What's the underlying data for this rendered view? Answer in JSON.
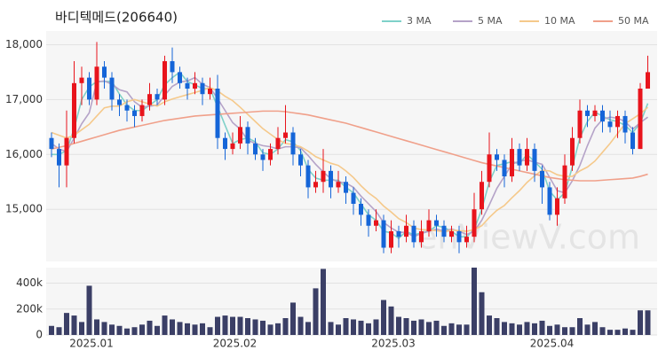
{
  "chart_data": [
    {
      "type": "candlestick",
      "title": "바디텍메드(206640)",
      "watermark": "enViewV.com",
      "categories": [
        null,
        null,
        "2025.01",
        null,
        null,
        null,
        null,
        null,
        null,
        null,
        null,
        null,
        null,
        null,
        null,
        null,
        null,
        null,
        null,
        null,
        null,
        "2025.02",
        null,
        null,
        null,
        null,
        null,
        null,
        null,
        null,
        null,
        null,
        null,
        null,
        null,
        null,
        null,
        null,
        null,
        null,
        null,
        null,
        "2025.03",
        null,
        null,
        null,
        null,
        null,
        null,
        null,
        null,
        null,
        null,
        null,
        null,
        null,
        null,
        null,
        null,
        null,
        null,
        null,
        null,
        "2025.04",
        null,
        null,
        null,
        null,
        null,
        null,
        null,
        null,
        null,
        null,
        null,
        null,
        null,
        null,
        null,
        null
      ],
      "open": [
        16300,
        16100,
        15800,
        16300,
        17300,
        17400,
        17000,
        17600,
        17400,
        17000,
        16900,
        16800,
        16700,
        16900,
        17100,
        17000,
        17700,
        17500,
        17300,
        17200,
        17300,
        17100,
        17200,
        16300,
        16100,
        16200,
        16500,
        16200,
        16000,
        15900,
        16100,
        16300,
        16400,
        16000,
        15800,
        15400,
        15500,
        15700,
        15400,
        15500,
        15300,
        15100,
        14900,
        14700,
        14800,
        14300,
        14600,
        14500,
        14700,
        14400,
        14600,
        14800,
        14700,
        14500,
        14600,
        14400,
        14500,
        15000,
        15500,
        16000,
        15900,
        15600,
        16100,
        15800,
        16100,
        15700,
        15400,
        14900,
        15200,
        15800,
        16300,
        16800,
        16700,
        16800,
        16600,
        16500,
        16700,
        16400,
        16100,
        17200
      ],
      "high": [
        16400,
        16200,
        16800,
        17700,
        17600,
        17500,
        18050,
        17700,
        17500,
        17100,
        17000,
        16900,
        17000,
        17300,
        17200,
        17800,
        17950,
        17600,
        17400,
        17500,
        17400,
        17400,
        17450,
        16400,
        16400,
        16700,
        16600,
        16300,
        16100,
        16200,
        16500,
        16900,
        16500,
        16100,
        15900,
        15700,
        16100,
        15800,
        15700,
        15600,
        15400,
        15200,
        15000,
        15000,
        14900,
        14800,
        14700,
        14900,
        14800,
        14800,
        15000,
        14900,
        14800,
        14700,
        14700,
        14700,
        15300,
        15700,
        16400,
        16100,
        16000,
        16300,
        16200,
        16300,
        16200,
        15800,
        15500,
        15400,
        16000,
        16500,
        17000,
        16900,
        16900,
        16900,
        16800,
        16800,
        16800,
        16500,
        17300,
        17800
      ],
      "low": [
        15950,
        15400,
        15400,
        16200,
        16900,
        16900,
        16900,
        17200,
        16800,
        16700,
        16600,
        16500,
        16600,
        16800,
        16900,
        16900,
        17300,
        17200,
        17000,
        17100,
        16900,
        17000,
        16100,
        15900,
        16000,
        16100,
        16000,
        15900,
        15700,
        15800,
        16000,
        16200,
        15800,
        15600,
        15200,
        15300,
        15300,
        15200,
        15300,
        15100,
        14900,
        14700,
        14500,
        14600,
        14200,
        14200,
        14300,
        14400,
        14300,
        14300,
        14500,
        14500,
        14400,
        14400,
        14200,
        14300,
        14400,
        14900,
        15400,
        15700,
        15400,
        15500,
        15700,
        15700,
        15500,
        15100,
        14800,
        14700,
        15100,
        15700,
        16200,
        16500,
        16600,
        16400,
        16400,
        16300,
        16200,
        16000,
        16100,
        17200
      ],
      "close": [
        16100,
        15800,
        16300,
        17300,
        17400,
        17000,
        17600,
        17400,
        17000,
        16900,
        16800,
        16700,
        16900,
        17100,
        17000,
        17700,
        17500,
        17300,
        17200,
        17300,
        17100,
        17200,
        16300,
        16100,
        16200,
        16500,
        16200,
        16000,
        15900,
        16100,
        16300,
        16400,
        16000,
        15800,
        15400,
        15500,
        15700,
        15400,
        15500,
        15300,
        15100,
        14900,
        14700,
        14800,
        14300,
        14600,
        14500,
        14700,
        14400,
        14600,
        14800,
        14700,
        14500,
        14600,
        14400,
        14500,
        15000,
        15500,
        16000,
        15900,
        15600,
        16100,
        15800,
        16100,
        15700,
        15400,
        14900,
        15200,
        15800,
        16300,
        16800,
        16700,
        16800,
        16600,
        16500,
        16700,
        16400,
        16100,
        17200,
        17500
      ],
      "up_color": "#e8141c",
      "down_color": "#1565d8",
      "series": [
        {
          "name": "3 MA",
          "color": "#7fd1c9",
          "values": [
            16000,
            16000,
            16070,
            16470,
            17000,
            17230,
            17330,
            17330,
            17330,
            17100,
            16900,
            16800,
            16800,
            16900,
            17000,
            17270,
            17400,
            17500,
            17330,
            17270,
            17200,
            17200,
            16870,
            16530,
            16200,
            16270,
            16300,
            16230,
            16030,
            16000,
            16100,
            16270,
            16230,
            16070,
            15730,
            15570,
            15530,
            15530,
            15530,
            15400,
            15300,
            15100,
            14900,
            14800,
            14600,
            14570,
            14470,
            14600,
            14530,
            14570,
            14600,
            14700,
            14670,
            14600,
            14500,
            14500,
            14630,
            15000,
            15500,
            15800,
            15830,
            15870,
            15830,
            16000,
            15870,
            15730,
            15330,
            15170,
            15300,
            15770,
            16300,
            16600,
            16770,
            16700,
            16630,
            16600,
            16530,
            16400,
            16570,
            16930
          ]
        },
        {
          "name": "5 MA",
          "color": "#b5a3c8",
          "values": [
            16200,
            16100,
            16050,
            16300,
            16560,
            16760,
            17320,
            17340,
            17280,
            17180,
            17140,
            16960,
            16860,
            16880,
            16900,
            17080,
            17240,
            17320,
            17340,
            17400,
            17280,
            17220,
            17020,
            16800,
            16580,
            16460,
            16260,
            16200,
            16160,
            16140,
            16100,
            16140,
            16140,
            16120,
            15980,
            15820,
            15680,
            15560,
            15500,
            15480,
            15400,
            15240,
            15100,
            14960,
            14760,
            14660,
            14580,
            14580,
            14500,
            14560,
            14600,
            14640,
            14600,
            14640,
            14600,
            14540,
            14600,
            14800,
            15080,
            15380,
            15600,
            15820,
            15880,
            15900,
            15860,
            15820,
            15580,
            15340,
            15300,
            15520,
            15800,
            16160,
            16480,
            16640,
            16680,
            16660,
            16600,
            16460,
            16580,
            16680
          ]
        },
        {
          "name": "10 MA",
          "color": "#f5c98b",
          "values": [
            16400,
            16350,
            16300,
            16350,
            16450,
            16550,
            16700,
            16850,
            16880,
            16880,
            16960,
            17000,
            16960,
            16920,
            16880,
            16960,
            17010,
            17050,
            17090,
            17130,
            17170,
            17220,
            17160,
            17060,
            16980,
            16860,
            16730,
            16600,
            16470,
            16370,
            16270,
            16200,
            16180,
            16140,
            16060,
            15960,
            15900,
            15840,
            15800,
            15700,
            15580,
            15430,
            15300,
            15200,
            15060,
            14950,
            14830,
            14760,
            14660,
            14630,
            14620,
            14610,
            14590,
            14620,
            14610,
            14600,
            14630,
            14700,
            14850,
            14980,
            15070,
            15210,
            15340,
            15490,
            15610,
            15710,
            15700,
            15630,
            15600,
            15600,
            15700,
            15770,
            15880,
            16040,
            16200,
            16380,
            16560,
            16650,
            16740,
            16860
          ]
        },
        {
          "name": "50 MA",
          "color": "#f0a08a",
          "values": [
            16100,
            16130,
            16160,
            16200,
            16240,
            16280,
            16320,
            16360,
            16400,
            16440,
            16470,
            16500,
            16530,
            16560,
            16590,
            16620,
            16640,
            16660,
            16680,
            16700,
            16710,
            16720,
            16730,
            16740,
            16750,
            16760,
            16770,
            16780,
            16790,
            16790,
            16790,
            16780,
            16760,
            16740,
            16720,
            16690,
            16660,
            16630,
            16600,
            16570,
            16530,
            16490,
            16450,
            16410,
            16370,
            16330,
            16290,
            16250,
            16210,
            16170,
            16130,
            16090,
            16050,
            16010,
            15970,
            15930,
            15890,
            15850,
            15820,
            15790,
            15760,
            15730,
            15700,
            15670,
            15640,
            15610,
            15580,
            15560,
            15540,
            15530,
            15520,
            15520,
            15520,
            15530,
            15540,
            15550,
            15560,
            15570,
            15600,
            15640
          ]
        }
      ],
      "ylim": [
        14050,
        18250
      ],
      "yticks": [
        {
          "value": 15000,
          "label": "15,000"
        },
        {
          "value": 16000,
          "label": "16,000"
        },
        {
          "value": 17000,
          "label": "17,000"
        },
        {
          "value": 18000,
          "label": "18,000"
        }
      ],
      "grid": true,
      "legend": "top-right"
    },
    {
      "type": "bar",
      "color": "#3b3f66",
      "values": [
        70000,
        60000,
        170000,
        150000,
        100000,
        380000,
        120000,
        100000,
        80000,
        70000,
        50000,
        60000,
        80000,
        110000,
        70000,
        150000,
        120000,
        100000,
        90000,
        80000,
        90000,
        60000,
        140000,
        150000,
        140000,
        140000,
        130000,
        120000,
        110000,
        80000,
        90000,
        130000,
        250000,
        140000,
        100000,
        360000,
        510000,
        100000,
        80000,
        130000,
        120000,
        110000,
        90000,
        120000,
        270000,
        220000,
        140000,
        130000,
        110000,
        120000,
        100000,
        110000,
        70000,
        90000,
        80000,
        80000,
        520000,
        330000,
        150000,
        130000,
        100000,
        90000,
        80000,
        100000,
        90000,
        110000,
        70000,
        80000,
        60000,
        60000,
        130000,
        80000,
        100000,
        60000,
        40000,
        40000,
        50000,
        40000,
        190000,
        190000
      ],
      "ylim": [
        0,
        520000
      ],
      "yticks": [
        0,
        {
          "value": 200000,
          "label": "200k"
        },
        {
          "value": 400000,
          "label": "400k"
        }
      ],
      "grid": true
    }
  ]
}
